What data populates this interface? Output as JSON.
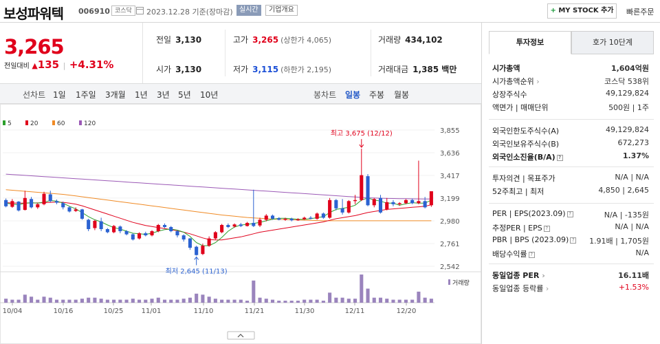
{
  "header": {
    "name": "보성파워텍",
    "code": "006910",
    "market": "코스닥",
    "date": "2023.12.28  기준(장마감)",
    "live": "실시간",
    "company_info": "기업개요",
    "mystock": "MY STOCK 추가",
    "quick_order": "빠른주문"
  },
  "price": {
    "current": "3,265",
    "change_label": "전일대비",
    "change": "135",
    "rate": "+4.31%"
  },
  "stats": {
    "prev_label": "전일",
    "prev": "3,130",
    "high_label": "고가",
    "high": "3,265",
    "high_limit": "(상한가 4,065)",
    "volume_label": "거래량",
    "volume": "434,102",
    "open_label": "시가",
    "open": "3,130",
    "low_label": "저가",
    "low": "3,115",
    "low_limit": "(하한가 2,195)",
    "amount_label": "거래대금",
    "amount": "1,385 백만"
  },
  "periods": {
    "line_label": "선차트",
    "items": [
      "1일",
      "1주일",
      "3개월",
      "1년",
      "3년",
      "5년",
      "10년"
    ],
    "candle_label": "봉차트",
    "candle_items": [
      "일봉",
      "주봉",
      "월봉"
    ],
    "selected_candle": "일봉"
  },
  "legend": [
    {
      "label": "5",
      "color": "#2ca02c"
    },
    {
      "label": "20",
      "color": "#e0001b"
    },
    {
      "label": "60",
      "color": "#f08a24"
    },
    {
      "label": "120",
      "color": "#9b59b6"
    }
  ],
  "chart_data": {
    "type": "candlestick",
    "y_ticks": [
      "3,855",
      "3,636",
      "3,417",
      "3,199",
      "2,980",
      "2,761",
      "2,542"
    ],
    "ylim": [
      2542,
      3855
    ],
    "x_ticks": [
      "10/04",
      "10/16",
      "10/25",
      "11/01",
      "11/10",
      "11/21",
      "11/30",
      "12/11",
      "12/20"
    ],
    "volume_label": "거래량",
    "high_annotation": "최고 3,675 (12/12)",
    "low_annotation": "최저 2,645 (11/13)",
    "up_color": "#e0001b",
    "down_color": "#2b62d1",
    "candles": [
      [
        3180,
        3120,
        3195,
        3110
      ],
      [
        3115,
        3170,
        3190,
        3105
      ],
      [
        3165,
        3080,
        3170,
        3070
      ],
      [
        3085,
        3200,
        3270,
        3080
      ],
      [
        3190,
        3110,
        3210,
        3100
      ],
      [
        3110,
        3140,
        3150,
        3095
      ],
      [
        3140,
        3240,
        3260,
        3130
      ],
      [
        3235,
        3170,
        3270,
        3160
      ],
      [
        3170,
        3155,
        3185,
        3140
      ],
      [
        3150,
        3110,
        3165,
        3090
      ],
      [
        3110,
        3070,
        3120,
        3060
      ],
      [
        3075,
        3090,
        3110,
        3065
      ],
      [
        3090,
        3000,
        3095,
        2990
      ],
      [
        2990,
        2900,
        3000,
        2880
      ],
      [
        2910,
        2980,
        2990,
        2890
      ],
      [
        2975,
        2900,
        3010,
        2880
      ],
      [
        2900,
        2870,
        2910,
        2860
      ],
      [
        2870,
        2930,
        2940,
        2860
      ],
      [
        2925,
        2880,
        2935,
        2860
      ],
      [
        2880,
        2850,
        2890,
        2840
      ],
      [
        2850,
        2800,
        2860,
        2790
      ],
      [
        2810,
        2860,
        2870,
        2800
      ],
      [
        2860,
        2840,
        2875,
        2830
      ],
      [
        2840,
        2880,
        2890,
        2830
      ],
      [
        2880,
        2940,
        2950,
        2870
      ],
      [
        2940,
        2920,
        2955,
        2910
      ],
      [
        2920,
        2880,
        2930,
        2870
      ],
      [
        2880,
        2840,
        2890,
        2820
      ],
      [
        2840,
        2800,
        2850,
        2780
      ],
      [
        2810,
        2720,
        2815,
        2700
      ],
      [
        2730,
        2650,
        2740,
        2645
      ],
      [
        2660,
        2740,
        2760,
        2650
      ],
      [
        2740,
        2810,
        2830,
        2730
      ],
      [
        2810,
        2870,
        2880,
        2800
      ],
      [
        2870,
        2940,
        2950,
        2860
      ],
      [
        2940,
        2920,
        2955,
        2910
      ],
      [
        2925,
        2945,
        2955,
        2915
      ],
      [
        2945,
        2930,
        2960,
        2920
      ],
      [
        2930,
        2960,
        2970,
        2925
      ],
      [
        2960,
        2930,
        3280,
        2920
      ],
      [
        2935,
        2990,
        3010,
        2920
      ],
      [
        2990,
        3030,
        3045,
        2975
      ],
      [
        3030,
        3000,
        3040,
        2990
      ],
      [
        3005,
        2990,
        3015,
        2985
      ],
      [
        2990,
        3000,
        3010,
        2980
      ],
      [
        3000,
        2985,
        3010,
        2975
      ],
      [
        2985,
        2995,
        3005,
        2980
      ],
      [
        2995,
        3010,
        3020,
        2990
      ],
      [
        3010,
        3000,
        3025,
        2995
      ],
      [
        3000,
        3050,
        3060,
        2990
      ],
      [
        3050,
        3010,
        3060,
        3000
      ],
      [
        3010,
        3180,
        3200,
        3000
      ],
      [
        3180,
        3100,
        3190,
        3080
      ],
      [
        3100,
        3060,
        3190,
        3040
      ],
      [
        3060,
        3170,
        3180,
        3050
      ],
      [
        3170,
        3180,
        3230,
        3140
      ],
      [
        3180,
        3420,
        3675,
        3170
      ],
      [
        3410,
        3130,
        3430,
        3120
      ],
      [
        3130,
        3190,
        3200,
        3110
      ],
      [
        3200,
        3060,
        3230,
        3050
      ],
      [
        3090,
        3160,
        3200,
        3080
      ],
      [
        3160,
        3140,
        3180,
        3120
      ],
      [
        3140,
        3150,
        3160,
        3125
      ],
      [
        3150,
        3180,
        3190,
        3140
      ],
      [
        3180,
        3150,
        3195,
        3140
      ],
      [
        3150,
        3170,
        3560,
        3140
      ],
      [
        3170,
        3110,
        3210,
        3100
      ],
      [
        3130,
        3265,
        3265,
        3115
      ]
    ],
    "ma5": [
      3150,
      3140,
      3135,
      3150,
      3155,
      3150,
      3160,
      3175,
      3170,
      3150,
      3120,
      3095,
      3060,
      3020,
      2990,
      2970,
      2940,
      2915,
      2900,
      2880,
      2860,
      2855,
      2850,
      2860,
      2880,
      2895,
      2900,
      2890,
      2870,
      2830,
      2770,
      2740,
      2740,
      2770,
      2820,
      2880,
      2920,
      2940,
      2945,
      2955,
      2965,
      2980,
      2995,
      3005,
      3005,
      3000,
      2995,
      2995,
      3000,
      3010,
      3020,
      3060,
      3090,
      3100,
      3110,
      3130,
      3180,
      3200,
      3180,
      3170,
      3150,
      3150,
      3130,
      3145,
      3155,
      3150,
      3150,
      3180
    ],
    "ma20": [
      3155,
      3152,
      3150,
      3150,
      3152,
      3153,
      3155,
      3158,
      3160,
      3158,
      3150,
      3140,
      3125,
      3105,
      3085,
      3065,
      3045,
      3025,
      3005,
      2985,
      2965,
      2950,
      2935,
      2925,
      2915,
      2905,
      2895,
      2885,
      2870,
      2855,
      2835,
      2815,
      2800,
      2795,
      2795,
      2805,
      2815,
      2825,
      2840,
      2855,
      2870,
      2880,
      2890,
      2900,
      2910,
      2920,
      2930,
      2940,
      2950,
      2960,
      2970,
      2985,
      3000,
      3010,
      3020,
      3030,
      3045,
      3060,
      3070,
      3080,
      3090,
      3095,
      3100,
      3105,
      3110,
      3115,
      3120,
      3135
    ],
    "ma60": [
      3280,
      3275,
      3270,
      3265,
      3260,
      3255,
      3250,
      3245,
      3240,
      3235,
      3228,
      3220,
      3212,
      3204,
      3196,
      3188,
      3180,
      3172,
      3164,
      3156,
      3148,
      3140,
      3132,
      3124,
      3116,
      3108,
      3100,
      3092,
      3084,
      3076,
      3068,
      3060,
      3052,
      3044,
      3036,
      3030,
      3024,
      3018,
      3012,
      3008,
      3004,
      3000,
      2996,
      2994,
      2992,
      2990,
      2988,
      2986,
      2984,
      2982,
      2980,
      2980,
      2980,
      2980,
      2980,
      2980,
      2980,
      2980,
      2980,
      2980,
      2980,
      2980,
      2980,
      2980,
      2980,
      2980,
      2980,
      2980
    ],
    "ma120": [
      3430,
      3426,
      3422,
      3418,
      3414,
      3410,
      3406,
      3402,
      3398,
      3394,
      3390,
      3386,
      3382,
      3378,
      3374,
      3370,
      3366,
      3362,
      3358,
      3354,
      3350,
      3346,
      3342,
      3338,
      3334,
      3330,
      3326,
      3322,
      3318,
      3314,
      3310,
      3306,
      3302,
      3298,
      3294,
      3290,
      3286,
      3282,
      3278,
      3274,
      3270,
      3266,
      3262,
      3258,
      3254,
      3250,
      3246,
      3242,
      3238,
      3234,
      3230,
      3226,
      3222,
      3218,
      3214,
      3210,
      3206,
      3202,
      3200,
      3198,
      3196,
      3195,
      3194,
      3193,
      3192,
      3191,
      3190,
      3190
    ],
    "volume": [
      4,
      3,
      3,
      8,
      6,
      3,
      6,
      5,
      3,
      3,
      3,
      3,
      4,
      5,
      5,
      4,
      3,
      3,
      3,
      3,
      4,
      3,
      3,
      4,
      5,
      3,
      3,
      3,
      4,
      5,
      9,
      8,
      6,
      4,
      3,
      3,
      3,
      3,
      2,
      22,
      5,
      4,
      3,
      2,
      2,
      2,
      2,
      3,
      3,
      3,
      2,
      10,
      5,
      5,
      4,
      4,
      28,
      14,
      5,
      5,
      4,
      3,
      3,
      3,
      3,
      11,
      5,
      4
    ]
  },
  "right_panel": {
    "tab_active": "투자정보",
    "tab_other": "호가 10단계",
    "rows": [
      {
        "k": "시가총액",
        "v": "1,604억원",
        "bold": true
      },
      {
        "k": "시가총액순위",
        "v": "코스닥  538위",
        "arrow": true
      },
      {
        "k": "상장주식수",
        "v": "49,129,824"
      },
      {
        "k": "액면가  |  매매단위",
        "v": "500원  |  1주"
      },
      {
        "k": "외국인한도주식수(A)",
        "v": "49,129,824"
      },
      {
        "k": "외국인보유주식수(B)",
        "v": "672,273"
      },
      {
        "k": "외국인소진율(B/A)",
        "v": "1.37%",
        "bold": true,
        "q": true
      },
      {
        "k": "투자의견  |  목표주가",
        "v": "N/A  |  N/A"
      },
      {
        "k": "52주최고  |  최저",
        "v": "4,850  |  2,645"
      },
      {
        "k": "PER  |  EPS(2023.09)",
        "v": "N/A  |  -135원",
        "q": true
      },
      {
        "k": "추정PER  |  EPS",
        "v": "N/A  |  N/A",
        "q": true
      },
      {
        "k": "PBR  |  BPS (2023.09)",
        "v": "1.91배  |  1,705원",
        "q": true
      },
      {
        "k": "배당수익률",
        "v": "N/A",
        "q": true
      },
      {
        "k": "동일업종 PER",
        "v": "16.11배",
        "bold": true,
        "arrow": true
      },
      {
        "k": "동일업종 등락률",
        "v": "+1.53%",
        "arrow": true,
        "red": true
      }
    ]
  }
}
